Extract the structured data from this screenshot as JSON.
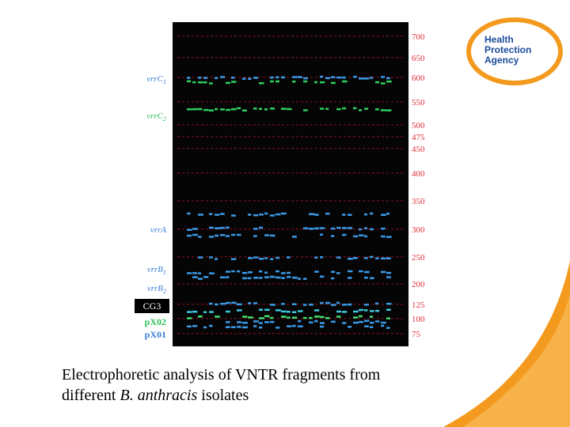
{
  "logo": {
    "lines": [
      "Health",
      "Protection",
      "Agency"
    ]
  },
  "gel": {
    "lane_labels": [
      {
        "name": "vrrC",
        "sub": "1"
      },
      {
        "name": "vrrC",
        "sub": "2"
      },
      {
        "name": "vrrA"
      },
      {
        "name": "vrrB",
        "sub": "1"
      },
      {
        "name": "vrrB",
        "sub": "2"
      },
      {
        "name": "CG3"
      },
      {
        "name": "pX02"
      },
      {
        "name": "pX01"
      }
    ],
    "size_markers": [
      700,
      650,
      600,
      550,
      500,
      475,
      450,
      400,
      350,
      300,
      250,
      200,
      125,
      100,
      75
    ]
  },
  "caption": {
    "line1": "Electrophoretic analysis of VNTR fragments from",
    "line2_start": "different ",
    "line2_italic": "B. anthracis",
    "line2_end": " isolates"
  }
}
